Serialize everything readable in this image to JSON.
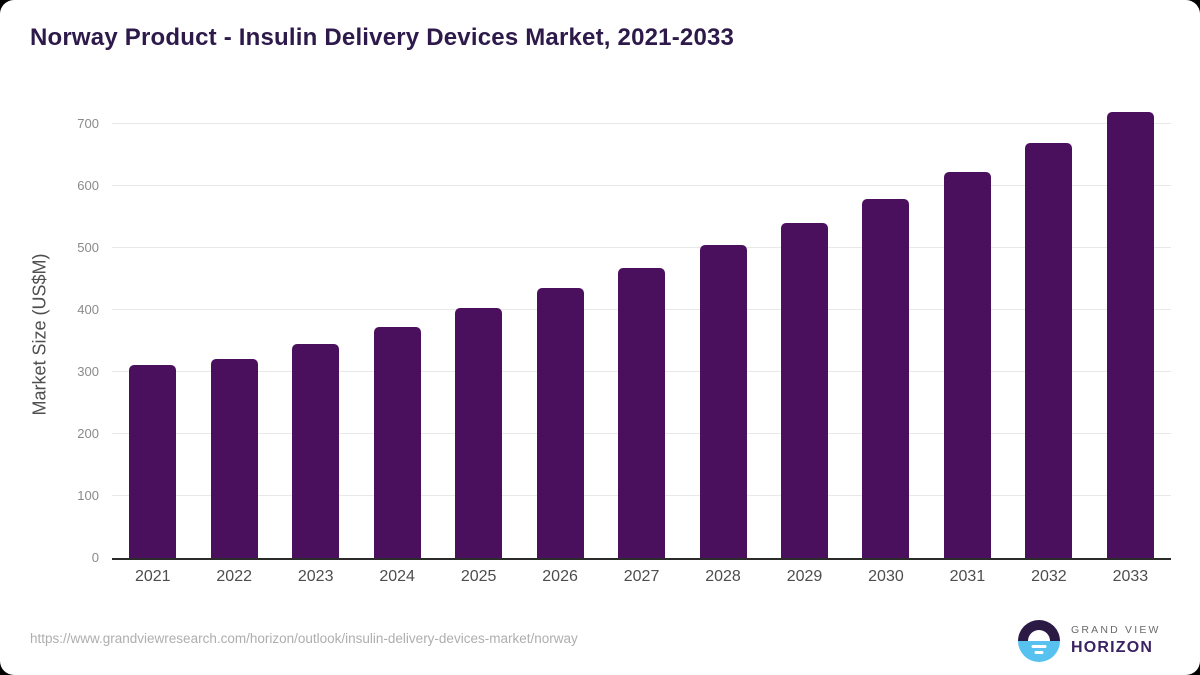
{
  "page": {
    "title": "Norway Product - Insulin Delivery Devices Market, 2021-2033"
  },
  "chart_data": {
    "type": "bar",
    "title": "Norway Product - Insulin Delivery Devices Market, 2021-2033",
    "categories": [
      "2021",
      "2022",
      "2023",
      "2024",
      "2025",
      "2026",
      "2027",
      "2028",
      "2029",
      "2030",
      "2031",
      "2032",
      "2033"
    ],
    "values": [
      311,
      321,
      345,
      372,
      403,
      435,
      467,
      505,
      540,
      579,
      622,
      669,
      720
    ],
    "xlabel": "",
    "ylabel": "Market Size (US$M)",
    "ylim": [
      0,
      700
    ],
    "yticks": [
      0,
      100,
      200,
      300,
      400,
      500,
      600,
      700
    ],
    "grid": true,
    "legend": false
  },
  "colors": {
    "bar": "#4a105e",
    "title": "#2d1a4a",
    "gridline": "#e8e8e8",
    "axis_line": "#2b2b2b",
    "y_tick_label": "#8a8a8a",
    "x_tick_label": "#4d4d4d",
    "logo_purple": "#2b1b44",
    "logo_blue": "#57c2f0"
  },
  "footer": {
    "source_url": "https://www.grandviewresearch.com/horizon/outlook/insulin-delivery-devices-market/norway",
    "logo_line1": "GRAND VIEW",
    "logo_line2": "HORIZON"
  }
}
